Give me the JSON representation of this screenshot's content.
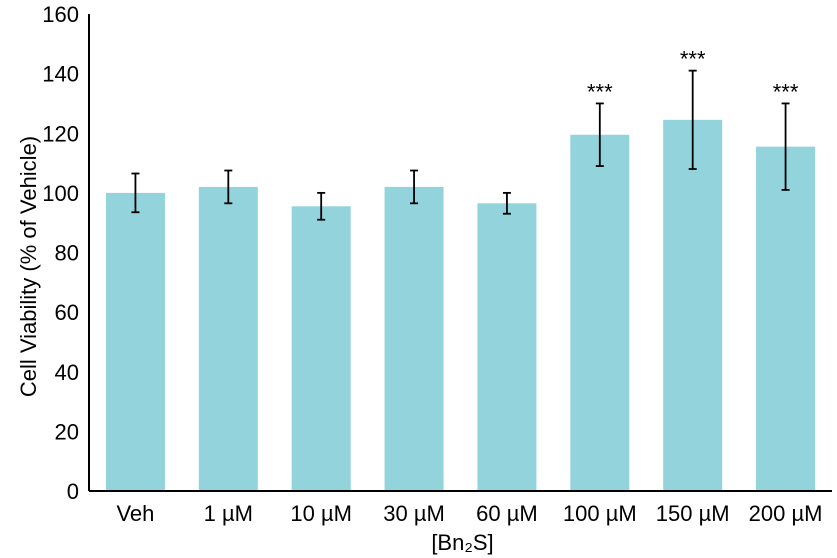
{
  "chart_data": {
    "type": "bar",
    "categories": [
      "Veh",
      "1 µM",
      "10 µM",
      "30 µM",
      "60 µM",
      "100 µM",
      "150 µM",
      "200 µM"
    ],
    "values": [
      100,
      102,
      95.5,
      102,
      96.5,
      119.5,
      124.5,
      115.5
    ],
    "errors": [
      6.5,
      5.5,
      4.5,
      5.5,
      3.5,
      10.5,
      16.5,
      14.5
    ],
    "annotations": [
      "",
      "",
      "",
      "",
      "",
      "***",
      "***",
      "***"
    ],
    "xlabel": "[Bn₂S]",
    "ylabel": "Cell Viability (% of Vehicle)",
    "ylim": [
      0,
      160
    ],
    "yticks": [
      "0",
      "20",
      "40",
      "60",
      "80",
      "100",
      "120",
      "140",
      "160"
    ],
    "bar_color": "#92d3dc",
    "grid": false
  }
}
